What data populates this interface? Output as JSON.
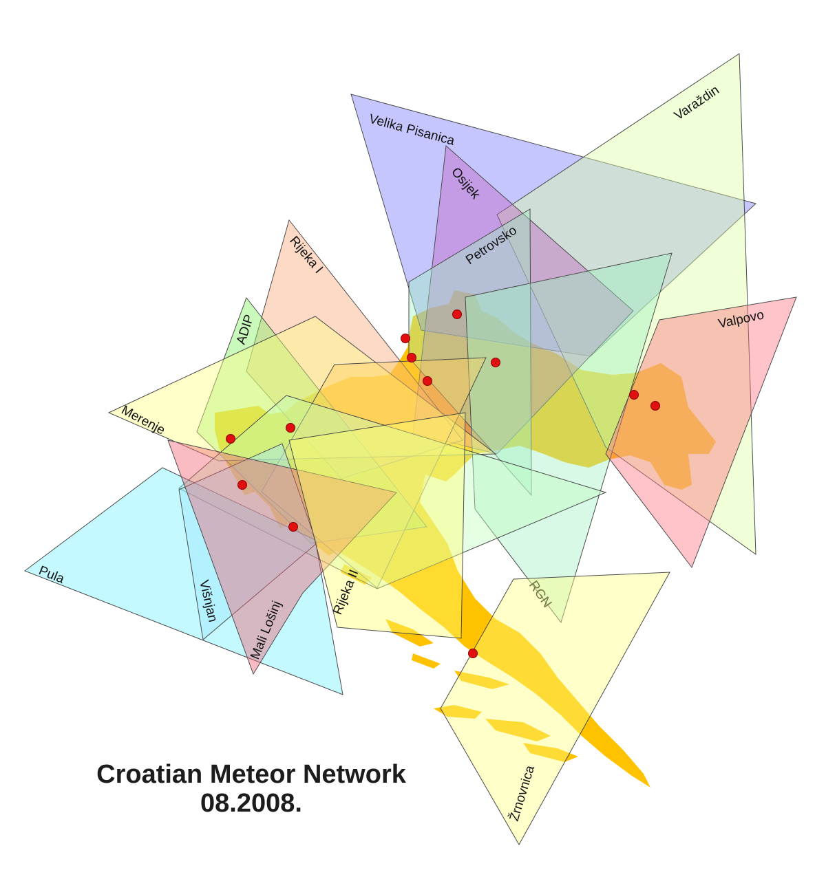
{
  "map": {
    "title": "Croatian Meteor Network",
    "date": "08.2008.",
    "colors": {
      "land": "#ffc200",
      "land_dark": "#f09a1a",
      "station": "#e01010"
    },
    "cameras": [
      {
        "id": "velika-pisanica",
        "label": "Velika Pisanica",
        "color": "#7777ff"
      },
      {
        "id": "varazdin",
        "label": "Varaždin",
        "color": "#dcffa0"
      },
      {
        "id": "osijek",
        "label": "Osijek",
        "color": "#c060c0"
      },
      {
        "id": "petrovsko",
        "label": "Petrovsko",
        "color": "#a0f0c0"
      },
      {
        "id": "rijeka-i",
        "label": "Rijeka I",
        "color": "#f8a878"
      },
      {
        "id": "adip",
        "label": "ADIP",
        "color": "#80f060"
      },
      {
        "id": "valpovo",
        "label": "Valpovo",
        "color": "#ff7080"
      },
      {
        "id": "merenje",
        "label": "Merenje",
        "color": "#ffff80"
      },
      {
        "id": "pula",
        "label": "Pula",
        "color": "#70f0ff"
      },
      {
        "id": "visnjan",
        "label": "Višnjan",
        "color": "#a0e8ff"
      },
      {
        "id": "mali-losinj",
        "label": "Mali Lošinj",
        "color": "#f06070"
      },
      {
        "id": "rijeka-ii",
        "label": "Rijeka II",
        "color": "#ffff70"
      },
      {
        "id": "rgn",
        "label": "RGN",
        "color": "#c0ffc0"
      },
      {
        "id": "zrnovnica",
        "label": "Žrnovnica",
        "color": "#ffff80"
      }
    ]
  }
}
